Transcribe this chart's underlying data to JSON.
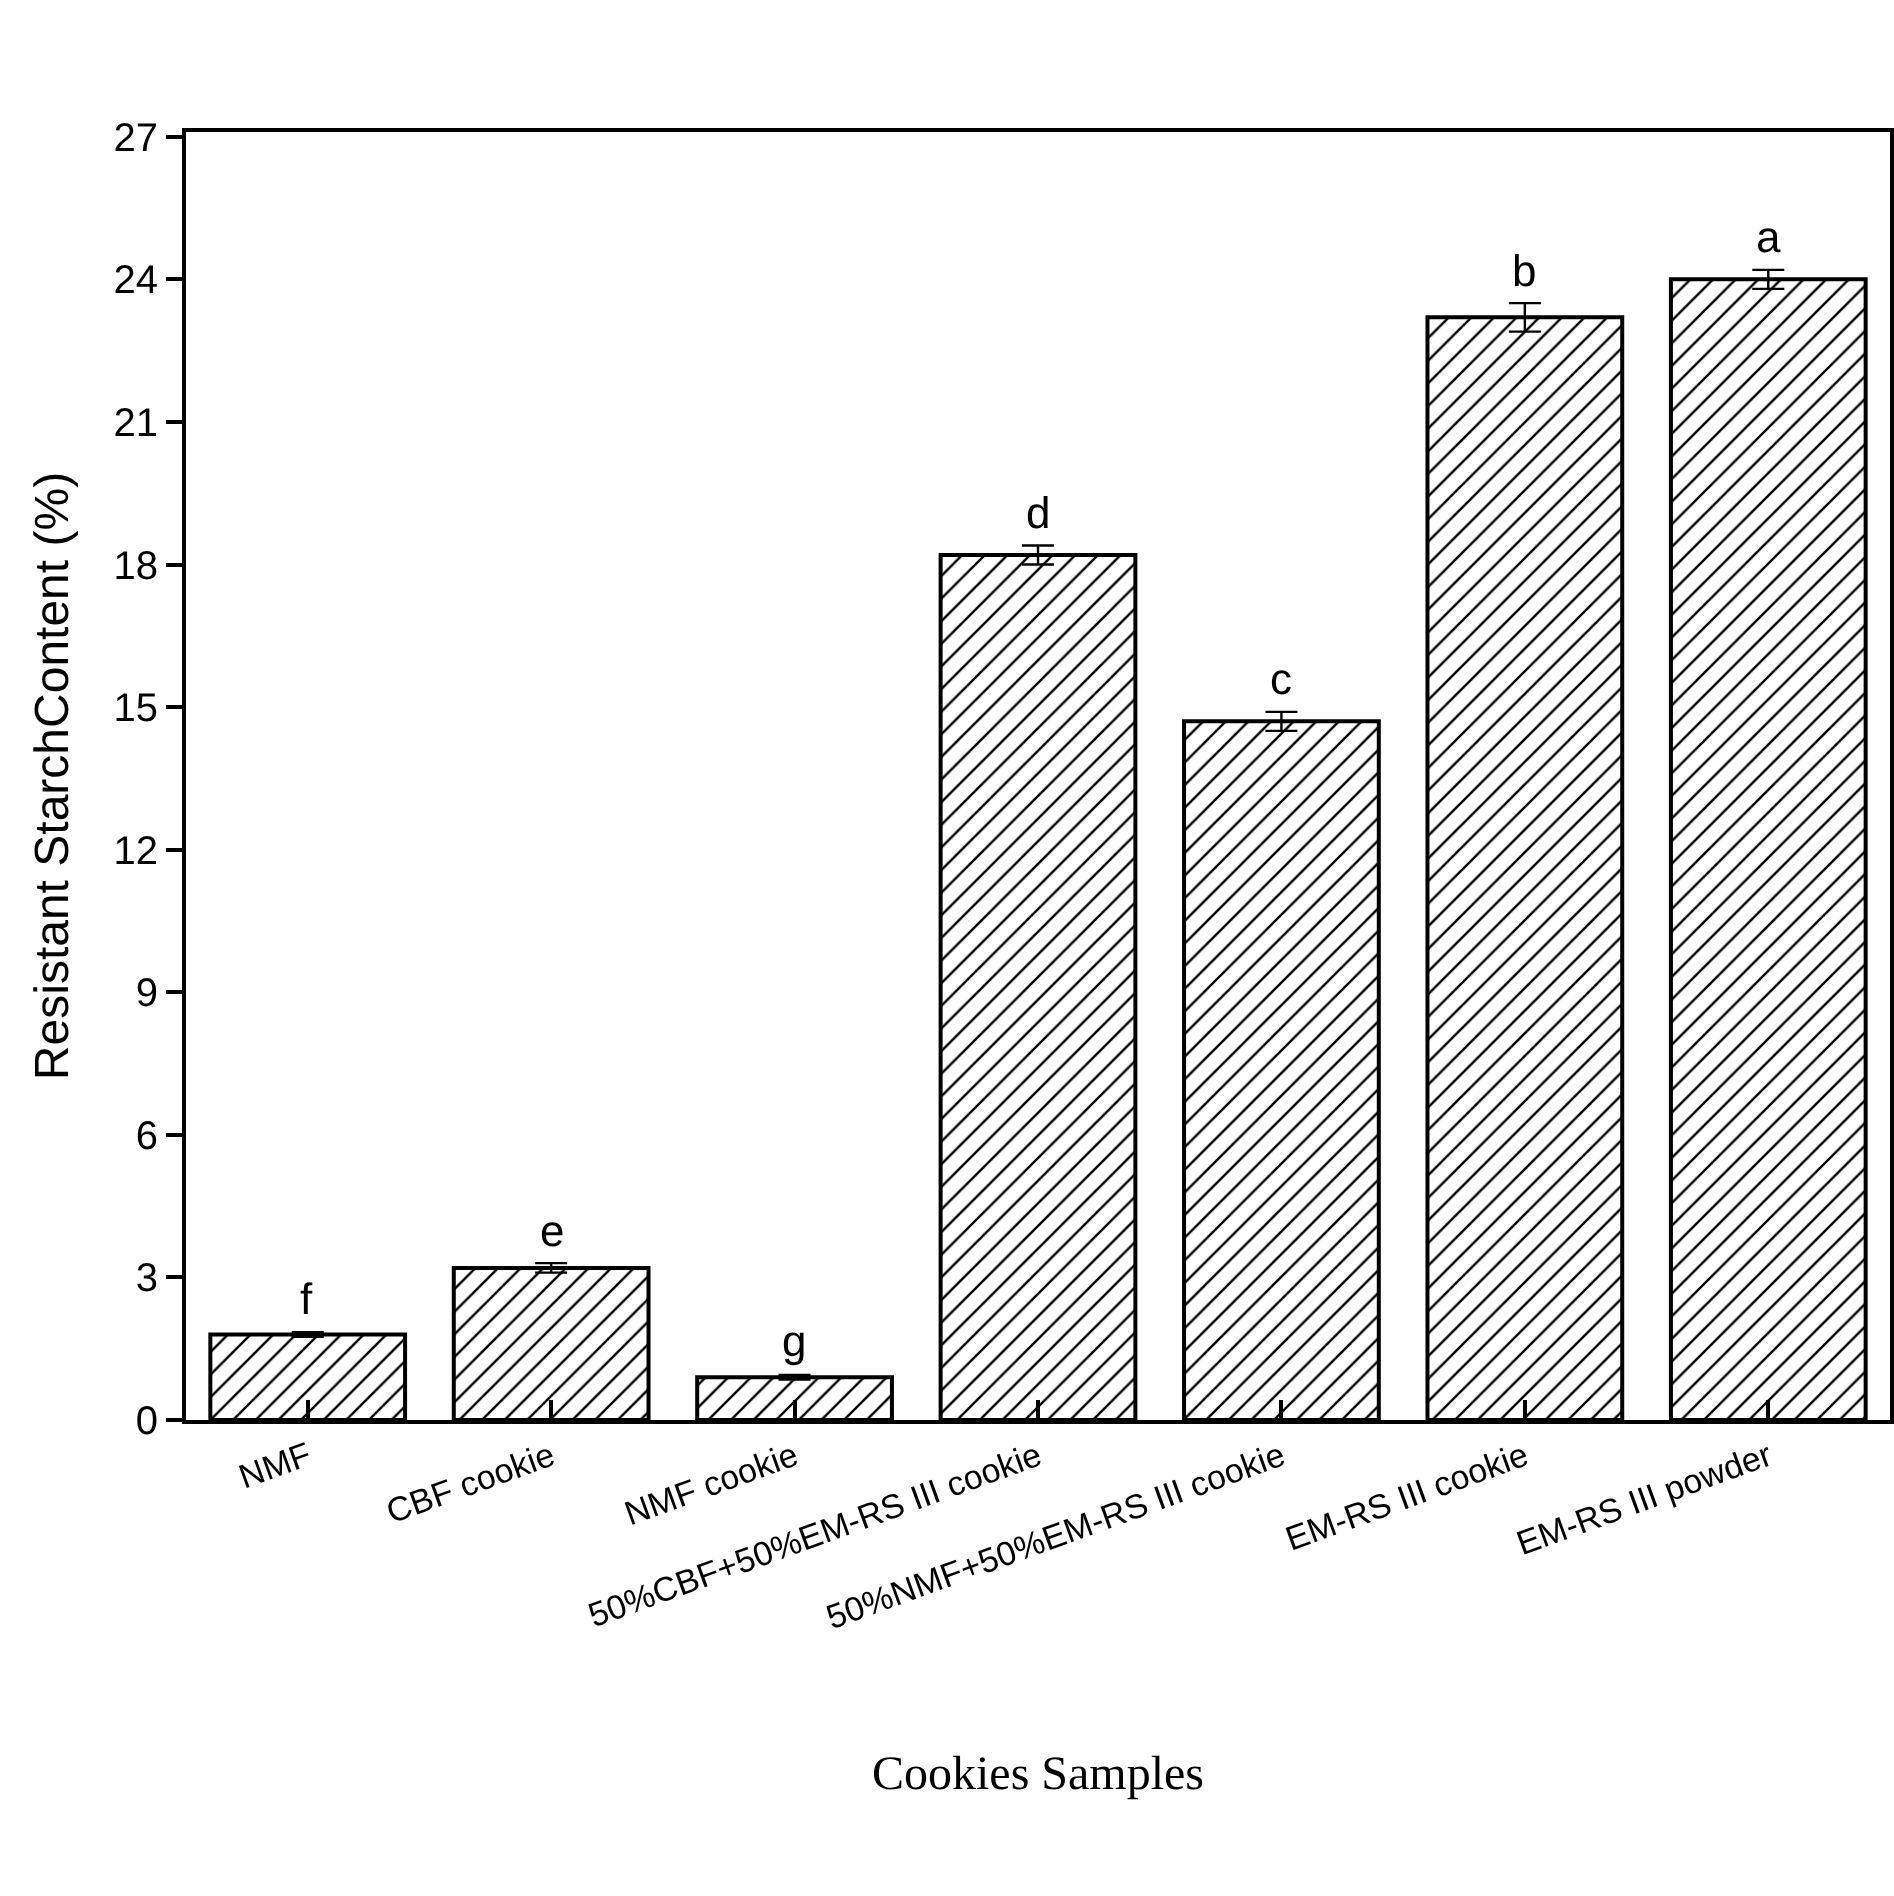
{
  "chart_data": {
    "type": "bar",
    "xlabel": "Cookies Samples",
    "ylabel": "Resistant StarchContent (%)",
    "categories": [
      "NMF",
      "CBF cookie",
      "NMF cookie",
      "50%CBF+50%EM-RS III cookie",
      "50%NMF+50%EM-RS III cookie",
      "EM-RS III cookie",
      "EM-RS III powder"
    ],
    "values": [
      1.8,
      3.2,
      0.9,
      18.2,
      14.7,
      23.2,
      24.0
    ],
    "errors": [
      0.05,
      0.1,
      0.05,
      0.2,
      0.2,
      0.3,
      0.2
    ],
    "color": "#000000",
    "ylim": [
      0,
      27.1
    ],
    "yticks": [
      0,
      3,
      6,
      9,
      12,
      15,
      18,
      21,
      24,
      27
    ],
    "grid": false,
    "annotations": [
      {
        "text": "f",
        "x": "NMF",
        "y": 1.85
      },
      {
        "text": "e",
        "x": "CBF cookie",
        "y": 3.3
      },
      {
        "text": "g",
        "x": "NMF cookie",
        "y": 0.95
      },
      {
        "text": "d",
        "x": "50%CBF+50%EM-RS III cookie",
        "y": 18.4
      },
      {
        "text": "c",
        "x": "50%NMF+50%EM-RS III cookie",
        "y": 14.9
      },
      {
        "text": "b",
        "x": "EM-RS III cookie",
        "y": 23.5
      },
      {
        "text": "a",
        "x": "EM-RS III powder",
        "y": 24.2
      }
    ]
  }
}
